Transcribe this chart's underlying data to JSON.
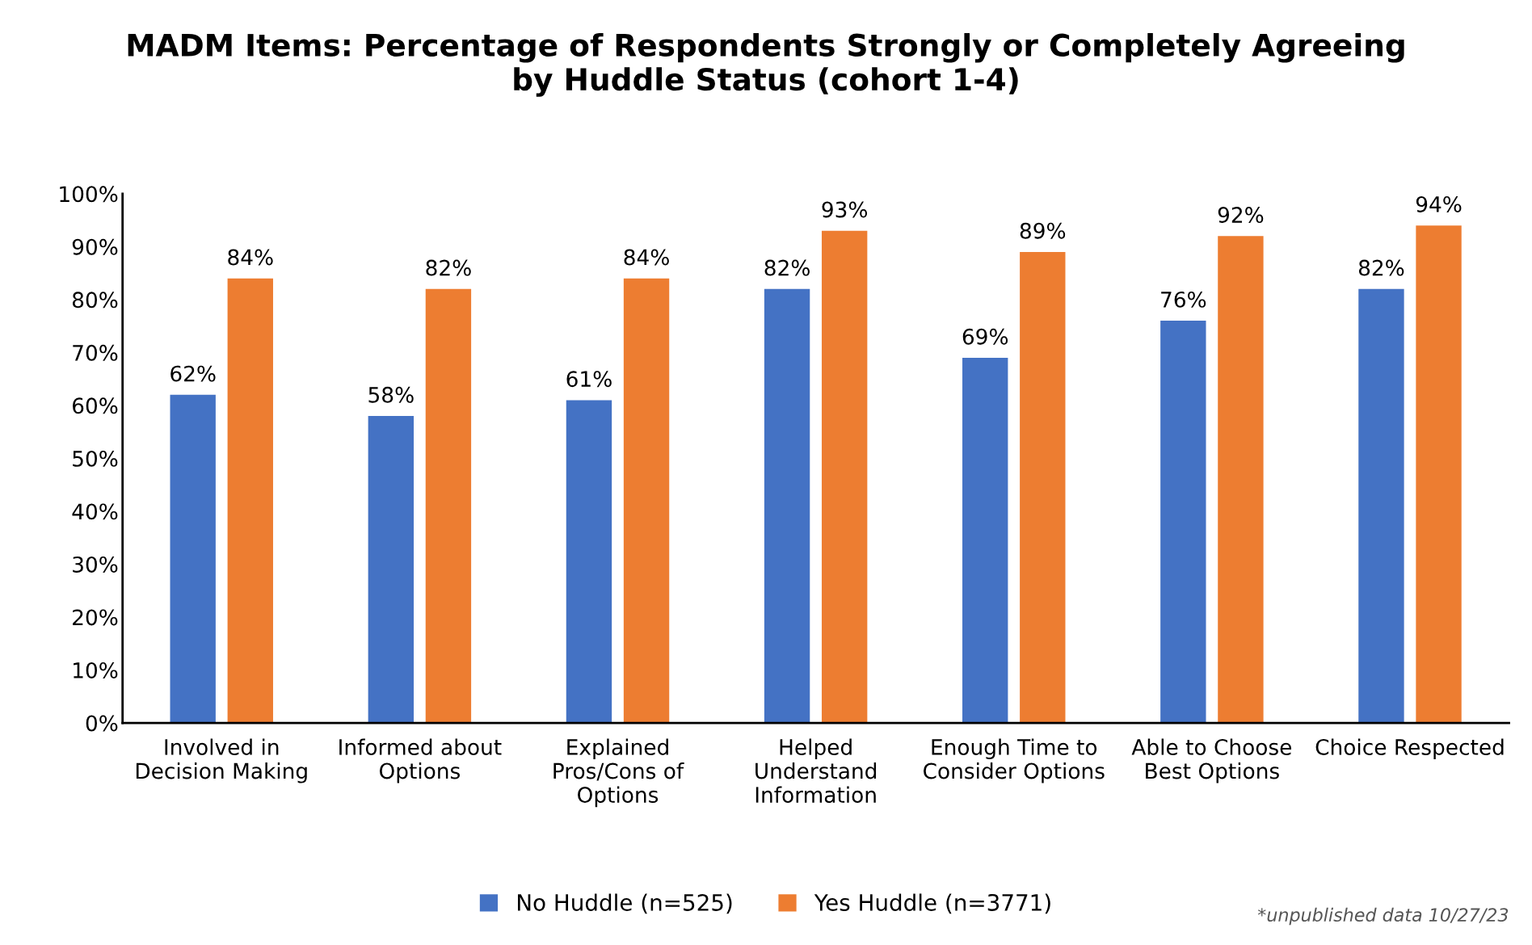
{
  "chart_data": {
    "type": "bar",
    "title": "MADM Items: Percentage of Respondents Strongly or Completely Agreeing\nby Huddle Status (cohort 1-4)",
    "categories": [
      "Involved in\nDecision Making",
      "Informed about\nOptions",
      "Explained\nPros/Cons of\nOptions",
      "Helped\nUnderstand\nInformation",
      "Enough Time to\nConsider Options",
      "Able to Choose\nBest Options",
      "Choice Respected"
    ],
    "series": [
      {
        "name": "No Huddle (n=525)",
        "color": "#4472c4",
        "values": [
          62,
          58,
          61,
          82,
          69,
          76,
          82
        ],
        "value_labels": [
          "62%",
          "58%",
          "61%",
          "82%",
          "69%",
          "76%",
          "82%"
        ]
      },
      {
        "name": "Yes Huddle (n=3771)",
        "color": "#ed7d31",
        "values": [
          84,
          82,
          84,
          93,
          89,
          92,
          94
        ],
        "value_labels": [
          "84%",
          "82%",
          "84%",
          "93%",
          "89%",
          "92%",
          "94%"
        ]
      }
    ],
    "ylim": [
      0,
      100
    ],
    "yticks": [
      {
        "value": 0,
        "label": "0%"
      },
      {
        "value": 10,
        "label": "10%"
      },
      {
        "value": 20,
        "label": "20%"
      },
      {
        "value": 30,
        "label": "30%"
      },
      {
        "value": 40,
        "label": "40%"
      },
      {
        "value": 50,
        "label": "50%"
      },
      {
        "value": 60,
        "label": "60%"
      },
      {
        "value": 70,
        "label": "70%"
      },
      {
        "value": 80,
        "label": "80%"
      },
      {
        "value": 90,
        "label": "90%"
      },
      {
        "value": 100,
        "label": "100%"
      }
    ],
    "grid": false,
    "legend": "bottom",
    "annotations": [
      "*unpublished data 10/27/23"
    ]
  }
}
